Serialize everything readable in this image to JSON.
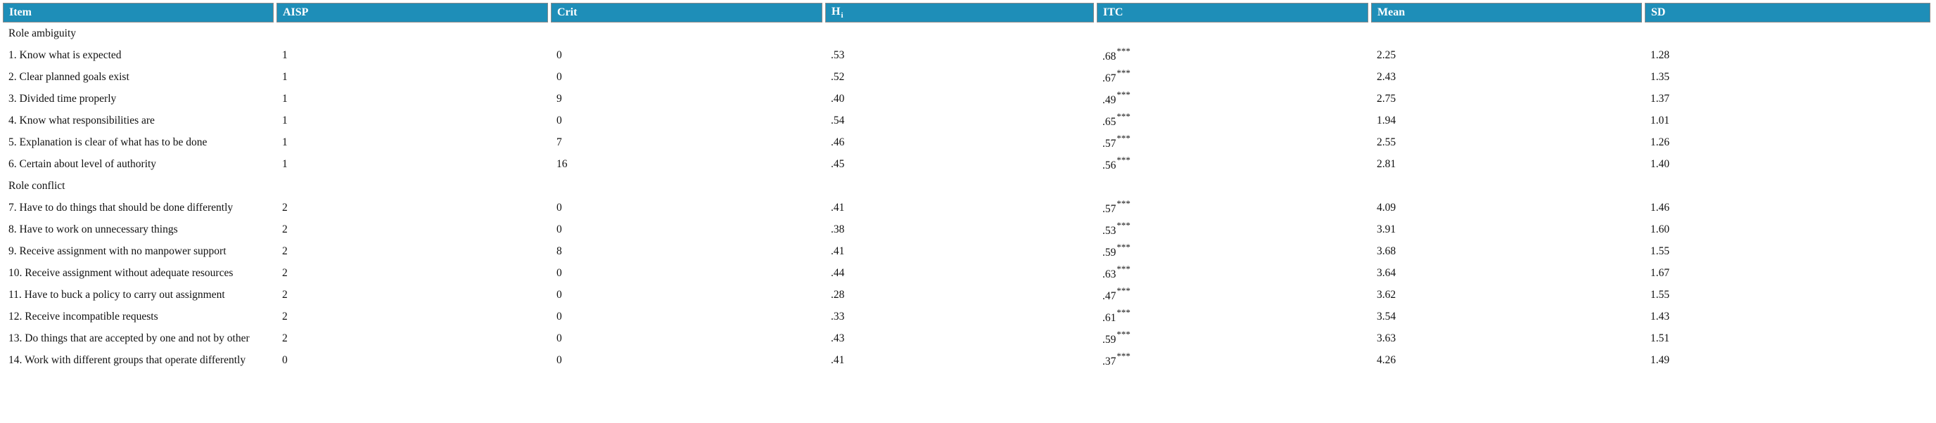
{
  "colors": {
    "header_bg": "#1e8eb8",
    "header_text": "#ffffff",
    "cell_border": "#8a8a8a",
    "body_text": "#111111"
  },
  "table": {
    "columns": [
      {
        "label": "Item",
        "sub": ""
      },
      {
        "label": "AISP",
        "sub": ""
      },
      {
        "label": "Crit",
        "sub": ""
      },
      {
        "label": "H",
        "sub": "i"
      },
      {
        "label": "ITC",
        "sub": ""
      },
      {
        "label": "Mean",
        "sub": ""
      },
      {
        "label": "SD",
        "sub": ""
      }
    ],
    "sections": [
      {
        "title": "Role ambiguity",
        "rows": [
          {
            "item": "1. Know what is expected",
            "aisp": "1",
            "crit": "0",
            "hi": ".53",
            "itc": ".68",
            "itc_sup": "***",
            "mean": "2.25",
            "sd": "1.28"
          },
          {
            "item": "2. Clear planned goals exist",
            "aisp": "1",
            "crit": "0",
            "hi": ".52",
            "itc": ".67",
            "itc_sup": "***",
            "mean": "2.43",
            "sd": "1.35"
          },
          {
            "item": "3. Divided time properly",
            "aisp": "1",
            "crit": "9",
            "hi": ".40",
            "itc": ".49",
            "itc_sup": "***",
            "mean": "2.75",
            "sd": "1.37"
          },
          {
            "item": "4. Know what responsibilities are",
            "aisp": "1",
            "crit": "0",
            "hi": ".54",
            "itc": ".65",
            "itc_sup": "***",
            "mean": "1.94",
            "sd": "1.01"
          },
          {
            "item": "5. Explanation is clear of what has to be done",
            "aisp": "1",
            "crit": "7",
            "hi": ".46",
            "itc": ".57",
            "itc_sup": "***",
            "mean": "2.55",
            "sd": "1.26"
          },
          {
            "item": "6. Certain about level of authority",
            "aisp": "1",
            "crit": "16",
            "hi": ".45",
            "itc": ".56",
            "itc_sup": "***",
            "mean": "2.81",
            "sd": "1.40"
          }
        ]
      },
      {
        "title": "Role conflict",
        "rows": [
          {
            "item": "7. Have to do things that should be done differently",
            "aisp": "2",
            "crit": "0",
            "hi": ".41",
            "itc": ".57",
            "itc_sup": "***",
            "mean": "4.09",
            "sd": "1.46"
          },
          {
            "item": "8. Have to work on unnecessary things",
            "aisp": "2",
            "crit": "0",
            "hi": ".38",
            "itc": ".53",
            "itc_sup": "***",
            "mean": "3.91",
            "sd": "1.60"
          },
          {
            "item": "9. Receive assignment with no manpower support",
            "aisp": "2",
            "crit": "8",
            "hi": ".41",
            "itc": ".59",
            "itc_sup": "***",
            "mean": "3.68",
            "sd": "1.55"
          },
          {
            "item": "10. Receive assignment without adequate resources",
            "aisp": "2",
            "crit": "0",
            "hi": ".44",
            "itc": ".63",
            "itc_sup": "***",
            "mean": "3.64",
            "sd": "1.67"
          },
          {
            "item": "11. Have to buck a policy to carry out assignment",
            "aisp": "2",
            "crit": "0",
            "hi": ".28",
            "itc": ".47",
            "itc_sup": "***",
            "mean": "3.62",
            "sd": "1.55"
          },
          {
            "item": "12. Receive incompatible requests",
            "aisp": "2",
            "crit": "0",
            "hi": ".33",
            "itc": ".61",
            "itc_sup": "***",
            "mean": "3.54",
            "sd": "1.43"
          },
          {
            "item": "13. Do things that are accepted by one and not by other",
            "aisp": "2",
            "crit": "0",
            "hi": ".43",
            "itc": ".59",
            "itc_sup": "***",
            "mean": "3.63",
            "sd": "1.51"
          },
          {
            "item": "14. Work with different groups that operate differently",
            "aisp": "0",
            "crit": "0",
            "hi": ".41",
            "itc": ".37",
            "itc_sup": "***",
            "mean": "4.26",
            "sd": "1.49"
          }
        ]
      }
    ]
  }
}
